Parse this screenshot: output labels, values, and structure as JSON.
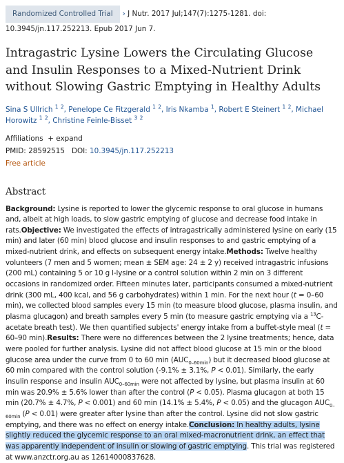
{
  "header": {
    "publication_type": "Randomized Controlled Trial",
    "citation": "J Nutr. 2017 Jul;147(7):1275-1281. doi: 10.3945/jn.117.252213. Epub 2017 Jun 7."
  },
  "title": "Intragastric Lysine Lowers the Circulating Glucose and Insulin Responses to a Mixed-Nutrient Drink without Slowing Gastric Emptying in Healthy Adults",
  "authors": [
    {
      "name": "Sina S Ullrich",
      "affils": [
        1,
        2
      ],
      "sep": ","
    },
    {
      "name": "Penelope Ce Fitzgerald",
      "affils": [
        1,
        2
      ],
      "sep": ","
    },
    {
      "name": "Iris Nkamba",
      "affils": [
        1
      ],
      "sep": ","
    },
    {
      "name": "Robert E Steinert",
      "affils": [
        1,
        2
      ],
      "sep": ","
    },
    {
      "name": "Michael Horowitz",
      "affils": [
        1,
        2
      ],
      "sep": ","
    },
    {
      "name": "Christine Feinle-Bisset",
      "affils": [
        3,
        2
      ]
    }
  ],
  "affiliations": {
    "label": "Affiliations",
    "toggle": "expand"
  },
  "identifiers": {
    "pmid_label": "PMID:",
    "pmid": "28592515",
    "doi_label": "DOI:",
    "doi": "10.3945/jn.117.252213"
  },
  "free": "Free article",
  "abstract": {
    "heading": "Abstract",
    "sections": [
      {
        "label": "Background:",
        "text": [
          " Lysine is reported to lower the glycemic response to oral glucose in humans and, albeit at high loads, to slow gastric emptying of glucose and decrease food intake in rats."
        ]
      },
      {
        "label": "Objective:",
        "text": [
          " We investigated the effects of intragastrically administered lysine on early (15 min) and later (60 min) blood glucose and insulin responses to and gastric emptying of a mixed-nutrient drink, and effects on subsequent energy intake."
        ]
      },
      {
        "label": "Methods:",
        "text": [
          " Twelve healthy volunteers (7 men and 5 women; mean ± SEM age: 24 ± 2 y) received intragastric infusions (200 mL) containing 5 or 10 g l-lysine or a control solution within 2 min on 3 different occasions in randomized order. Fifteen minutes later, participants consumed a mixed-nutrient drink (300 mL, 400 kcal, and 56 g carbohydrates) within 1 min. For the next hour (",
          {
            "i": "t"
          },
          " = 0–60 min), we collected blood samples every 15 min (to measure blood glucose, plasma insulin, and plasma glucagon) and breath samples every 5 min (to measure gastric emptying via a ",
          {
            "sup": "13"
          },
          "C-acetate breath test). We then quantified subjects' energy intake from a buffet-style meal (",
          {
            "i": "t"
          },
          " = 60–90 min)."
        ]
      },
      {
        "label": "Results:",
        "text": [
          " There were no differences between the 2 lysine treatments; hence, data were pooled for further analysis. Lysine did not affect blood glucose at 15 min or the blood glucose area under the curve from 0 to 60 min (AUC",
          {
            "sub": "0–60min"
          },
          ") but it decreased blood glucose at 60 min compared with the control solution (-9.1% ± 3.1%, ",
          {
            "i": "P"
          },
          " < 0.01). Similarly, the early insulin response and insulin AUC",
          {
            "sub": "0–60min"
          },
          " were not affected by lysine, but plasma insulin at 60 min was 20.9% ± 5.6% lower than after the control (",
          {
            "i": "P"
          },
          " < 0.05). Plasma glucagon at both 15 min (20.7% ± 4.7%, ",
          {
            "i": "P"
          },
          " < 0.001) and 60 min (14.1% ± 5.4%, ",
          {
            "i": "P"
          },
          " < 0.05) and the glucagon AUC",
          {
            "sub": "0–60min"
          },
          " (",
          {
            "i": "P"
          },
          " < 0.01) were greater after lysine than after the control. Lysine did not slow gastric emptying, and there was no effect on energy intake."
        ]
      },
      {
        "label": {
          "hl": "Conclusion:"
        },
        "text": [
          {
            "hl": " In healthy adults, lysine slightly reduced the glycemic response to an oral mixed-macronutrient drink, an effect that was apparently independent of insulin or slowing of gastric emptying"
          },
          ". This trial was registered at www.anzctr.org.au as 12614000837628."
        ]
      }
    ]
  }
}
